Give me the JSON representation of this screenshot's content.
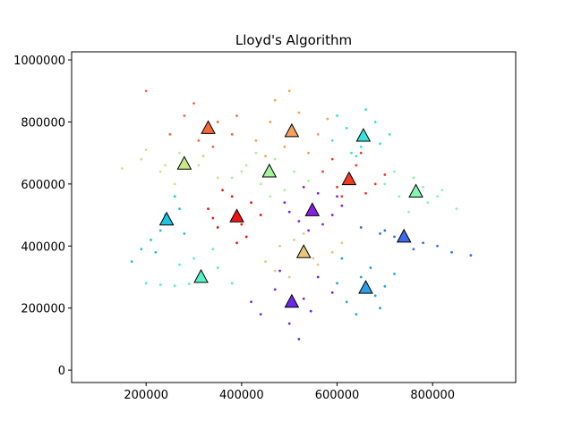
{
  "chart_data": {
    "type": "scatter",
    "title": "Lloyd's Algorithm",
    "xlim": [
      44000,
      974000
    ],
    "ylim": [
      -40000,
      1026000
    ],
    "xticks": [
      200000,
      400000,
      600000,
      800000
    ],
    "yticks": [
      0,
      200000,
      400000,
      600000,
      800000,
      1000000
    ],
    "series": [
      {
        "color": "#6a2ae8",
        "x": [
          440000,
          470000,
          500000,
          530000,
          560000,
          480000,
          520000,
          590000,
          420000,
          545000
        ],
        "y": [
          180000,
          260000,
          150000,
          230000,
          300000,
          320000,
          100000,
          250000,
          220000,
          190000
        ]
      },
      {
        "color": "#8a1fe0",
        "x": [
          490000,
          520000,
          560000,
          590000,
          610000,
          540000,
          500000,
          570000,
          530000,
          600000
        ],
        "y": [
          540000,
          480000,
          570000,
          500000,
          530000,
          450000,
          510000,
          470000,
          590000,
          560000
        ]
      },
      {
        "color": "#f01414",
        "x": [
          330000,
          350000,
          380000,
          410000,
          440000,
          360000,
          400000,
          420000,
          340000,
          390000
        ],
        "y": [
          520000,
          460000,
          560000,
          430000,
          500000,
          580000,
          470000,
          540000,
          490000,
          410000
        ]
      },
      {
        "color": "#f03c24",
        "x": [
          570000,
          600000,
          640000,
          680000,
          700000,
          610000,
          650000,
          590000,
          660000,
          630000
        ],
        "y": [
          640000,
          590000,
          660000,
          600000,
          630000,
          560000,
          700000,
          680000,
          570000,
          620000
        ]
      },
      {
        "color": "#f4683c",
        "x": [
          250000,
          280000,
          310000,
          350000,
          380000,
          300000,
          340000,
          200000,
          390000,
          320000
        ],
        "y": [
          760000,
          820000,
          740000,
          800000,
          760000,
          860000,
          720000,
          900000,
          820000,
          690000
        ]
      },
      {
        "color": "#f6a05c",
        "x": [
          430000,
          460000,
          490000,
          520000,
          560000,
          470000,
          540000,
          500000,
          450000,
          580000
        ],
        "y": [
          740000,
          800000,
          720000,
          830000,
          760000,
          870000,
          700000,
          900000,
          690000,
          810000
        ]
      },
      {
        "color": "#e8c67a",
        "x": [
          450000,
          480000,
          510000,
          550000,
          590000,
          470000,
          530000,
          610000,
          500000,
          560000
        ],
        "y": [
          350000,
          400000,
          420000,
          360000,
          380000,
          320000,
          440000,
          410000,
          300000,
          340000
        ]
      },
      {
        "color": "#c6e68a",
        "x": [
          150000,
          190000,
          230000,
          270000,
          310000,
          350000,
          200000,
          260000,
          320000,
          240000
        ],
        "y": [
          650000,
          680000,
          640000,
          700000,
          660000,
          620000,
          710000,
          600000,
          690000,
          660000
        ]
      },
      {
        "color": "#a6f29c",
        "x": [
          380000,
          410000,
          440000,
          470000,
          510000,
          540000,
          430000,
          490000,
          400000,
          460000
        ],
        "y": [
          620000,
          660000,
          600000,
          680000,
          640000,
          610000,
          700000,
          580000,
          640000,
          560000
        ]
      },
      {
        "color": "#84f6b2",
        "x": [
          700000,
          730000,
          760000,
          790000,
          820000,
          850000,
          720000,
          780000,
          750000,
          810000
        ],
        "y": [
          600000,
          560000,
          620000,
          540000,
          580000,
          520000,
          640000,
          590000,
          510000,
          560000
        ]
      },
      {
        "color": "#56f2c8",
        "x": [
          200000,
          230000,
          260000,
          290000,
          320000,
          350000,
          380000,
          300000,
          270000,
          340000
        ],
        "y": [
          280000,
          275000,
          272000,
          278000,
          300000,
          330000,
          280000,
          360000,
          340000,
          390000
        ]
      },
      {
        "color": "#3ae2dc",
        "x": [
          590000,
          620000,
          650000,
          680000,
          710000,
          640000,
          600000,
          660000,
          690000,
          630000
        ],
        "y": [
          740000,
          780000,
          720000,
          800000,
          760000,
          690000,
          820000,
          840000,
          730000,
          700000
        ]
      },
      {
        "color": "#1ec2e2",
        "x": [
          170000,
          190000,
          210000,
          230000,
          250000,
          270000,
          260000,
          240000,
          280000,
          220000
        ],
        "y": [
          350000,
          390000,
          420000,
          450000,
          480000,
          520000,
          560000,
          500000,
          440000,
          380000
        ]
      },
      {
        "color": "#2a9ee8",
        "x": [
          600000,
          620000,
          650000,
          680000,
          700000,
          640000,
          670000,
          610000,
          690000,
          720000
        ],
        "y": [
          280000,
          220000,
          300000,
          240000,
          270000,
          180000,
          330000,
          360000,
          200000,
          310000
        ]
      },
      {
        "color": "#3e6aea",
        "x": [
          650000,
          690000,
          720000,
          750000,
          780000,
          810000,
          840000,
          700000,
          760000,
          880000
        ],
        "y": [
          460000,
          440000,
          430000,
          420000,
          410000,
          400000,
          380000,
          450000,
          390000,
          370000
        ]
      }
    ],
    "centroids": {
      "x": [
        505000,
        548000,
        390000,
        625000,
        330000,
        505000,
        530000,
        280000,
        458000,
        765000,
        315000,
        655000,
        243000,
        660000,
        740000
      ],
      "y": [
        220000,
        515000,
        495000,
        615000,
        780000,
        770000,
        380000,
        665000,
        640000,
        575000,
        300000,
        755000,
        485000,
        265000,
        430000
      ]
    }
  }
}
